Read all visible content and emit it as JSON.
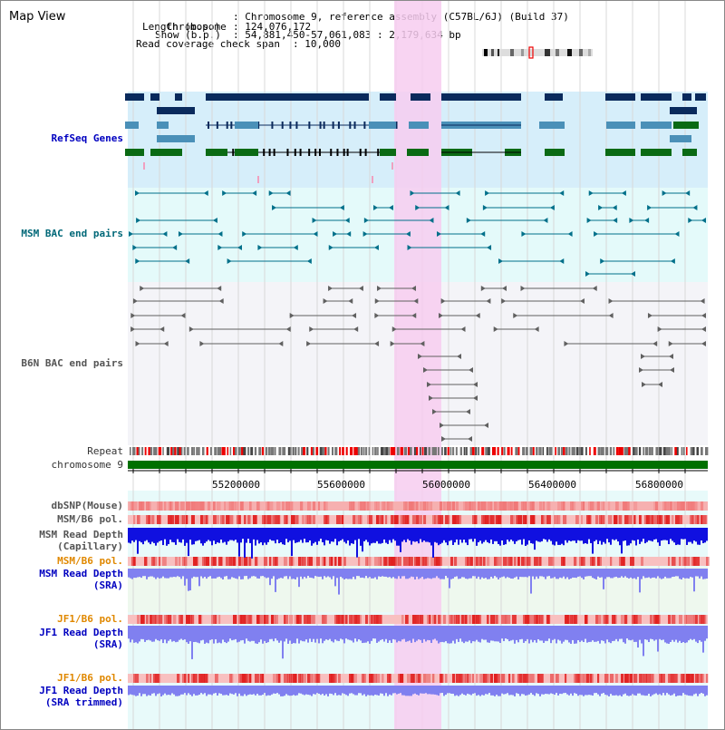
{
  "title": "Map View",
  "info": {
    "chromosome_label": "Chromosome",
    "chromosome_value": "Chromosome 9, reference assembly (C57BL/6J) (Build 37)",
    "length_label": "Length (b.p.)",
    "length_value": "124,076,172",
    "show_label": "Show (b.p.)",
    "show_value": "54,881,450-57,061,083 : 2,179,634 bp",
    "span_label": "Read coverage check span",
    "span_value": "10,000"
  },
  "tracks": {
    "refseq": "RefSeq Genes",
    "msm_bac": "MSM BAC end pairs",
    "b6n_bac": "B6N BAC end pairs",
    "repeat": "Repeat",
    "chromosome": "chromosome 9",
    "dbsnp": "dbSNP(Mouse)",
    "msm_b6_pol_1": "MSM/B6 pol.",
    "msm_depth_cap_1": "MSM Read Depth",
    "msm_depth_cap_2": "(Capillary)",
    "msm_b6_pol_2": "MSM/B6 pol.",
    "msm_depth_sra_1": "MSM Read Depth",
    "msm_depth_sra_2": "(SRA)",
    "jf1_b6_pol_1": "JF1/B6 pol.",
    "jf1_depth_sra_1": "JF1 Read Depth",
    "jf1_depth_sra_2": "(SRA)",
    "jf1_b6_pol_2": "JF1/B6 pol.",
    "jf1_depth_trim_1": "JF1 Read Depth",
    "jf1_depth_trim_2": "(SRA trimmed)"
  },
  "axis": {
    "ticks": [
      "55200000",
      "55600000",
      "56000000",
      "56400000",
      "56800000"
    ]
  },
  "colors": {
    "refseq_bg": "#d6eefa",
    "msm_bac_bg": "#e4fafa",
    "b6n_bg": "#f4f4f8",
    "highlight": "#f7ccf0",
    "gene_dark": "#0a2a5c",
    "gene_mid": "#4a90b8",
    "gene_green": "#0a6a14",
    "msm_pair": "#00708a",
    "b6n_pair": "#606060",
    "chrom_bar": "#007000",
    "depth_blue": "#1010e0",
    "depth_light": "#8080f0"
  }
}
